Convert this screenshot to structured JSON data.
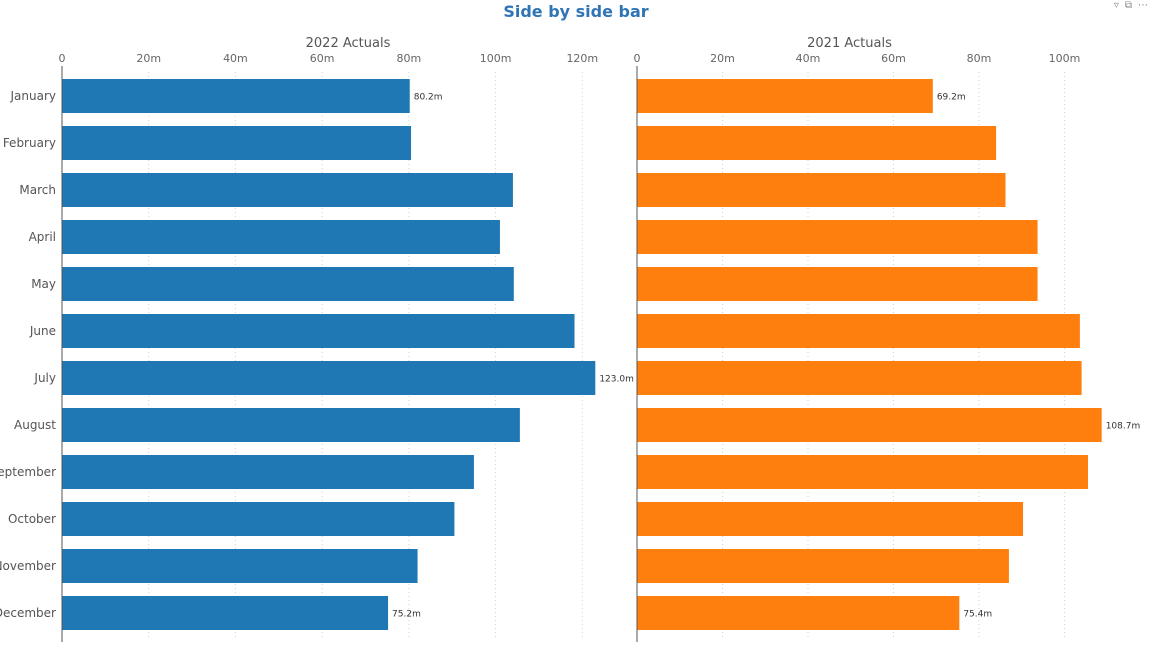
{
  "title": "Side by side bar",
  "icons": {
    "filter": "filter-icon",
    "focus": "focus-mode-icon",
    "more": "more-options-icon"
  },
  "colors": {
    "series_2022": "#1f77b4",
    "series_2021": "#ff7f0e",
    "title": "#2f75b5"
  },
  "chart_data": {
    "type": "bar",
    "orientation": "horizontal",
    "categories": [
      "January",
      "February",
      "March",
      "April",
      "May",
      "June",
      "July",
      "August",
      "September",
      "October",
      "November",
      "December"
    ],
    "panels": [
      {
        "title": "2022 Actuals",
        "xlim": [
          0,
          131
        ],
        "ticks": [
          0,
          20,
          40,
          60,
          80,
          100,
          120
        ],
        "tick_labels": [
          "0",
          "20m",
          "40m",
          "60m",
          "80m",
          "100m",
          "120m"
        ],
        "values": [
          80.2,
          80.5,
          104,
          101,
          104.2,
          118.2,
          123.0,
          105.6,
          95,
          90.5,
          82,
          75.2
        ],
        "data_labels": [
          "80.2m",
          "",
          "",
          "",
          "",
          "",
          "123.0m",
          "",
          "",
          "",
          "",
          "75.2m"
        ],
        "color": "#1f77b4"
      },
      {
        "title": "2021 Actuals",
        "xlim": [
          0,
          120
        ],
        "ticks": [
          0,
          20,
          40,
          60,
          80,
          100
        ],
        "tick_labels": [
          "0",
          "20m",
          "40m",
          "60m",
          "80m",
          "100m"
        ],
        "values": [
          69.2,
          84,
          86.2,
          93.7,
          93.7,
          103.6,
          104,
          108.7,
          105.5,
          90.3,
          87,
          75.4
        ],
        "data_labels": [
          "69.2m",
          "",
          "",
          "",
          "",
          "",
          "",
          "108.7m",
          "",
          "",
          "",
          "75.4m"
        ],
        "color": "#ff7f0e"
      }
    ]
  }
}
